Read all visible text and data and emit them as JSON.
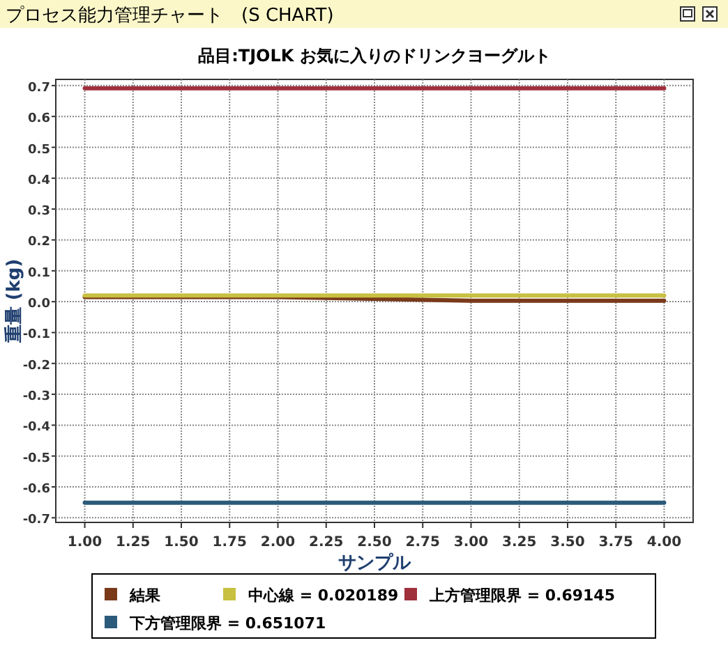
{
  "chart_data": {
    "type": "line",
    "title": "プロセス能力管理チャート　(S CHART)",
    "subtitle": "品目:TJOLK お気に入りのドリンクヨーグルト",
    "xlabel": "サンプル",
    "ylabel": "重量 (kg)",
    "x": [
      1,
      2,
      3,
      4
    ],
    "series": [
      {
        "name": "結果",
        "color": "#7a3a1a",
        "values": [
          0.015,
          0.015,
          0.003,
          0.003
        ]
      },
      {
        "name": "中心線 = 0.020189",
        "color": "#c8c040",
        "values": [
          0.020189,
          0.020189,
          0.020189,
          0.020189
        ]
      },
      {
        "name": "上方管理限界 = 0.69145",
        "color": "#a0303c",
        "values": [
          0.69145,
          0.69145,
          0.69145,
          0.69145
        ]
      },
      {
        "name": "下方管理限界 = 0.651071",
        "color": "#2c5a7a",
        "values": [
          -0.651071,
          -0.651071,
          -0.651071,
          -0.651071
        ]
      }
    ],
    "xlim": [
      0.85,
      4.15
    ],
    "ylim": [
      -0.715,
      0.72
    ],
    "xticks": [
      {
        "value": 1,
        "label": "1.00"
      },
      {
        "value": 1.25,
        "label": "1.25"
      },
      {
        "value": 1.5,
        "label": "1.50"
      },
      {
        "value": 1.75,
        "label": "1.75"
      },
      {
        "value": 2,
        "label": "2.00"
      },
      {
        "value": 2.25,
        "label": "2.25"
      },
      {
        "value": 2.5,
        "label": "2.50"
      },
      {
        "value": 2.75,
        "label": "2.75"
      },
      {
        "value": 3,
        "label": "3.00"
      },
      {
        "value": 3.25,
        "label": "3.25"
      },
      {
        "value": 3.5,
        "label": "3.50"
      },
      {
        "value": 3.75,
        "label": "3.75"
      },
      {
        "value": 4,
        "label": "4.00"
      }
    ],
    "yticks": [
      -0.7,
      -0.6,
      -0.5,
      -0.4,
      -0.3,
      -0.2,
      -0.1,
      {
        "value": 0,
        "label": "0.0"
      },
      0.1,
      0.2,
      0.3,
      0.4,
      0.5,
      0.6,
      0.7
    ],
    "grid": true,
    "legend": "bottom"
  }
}
